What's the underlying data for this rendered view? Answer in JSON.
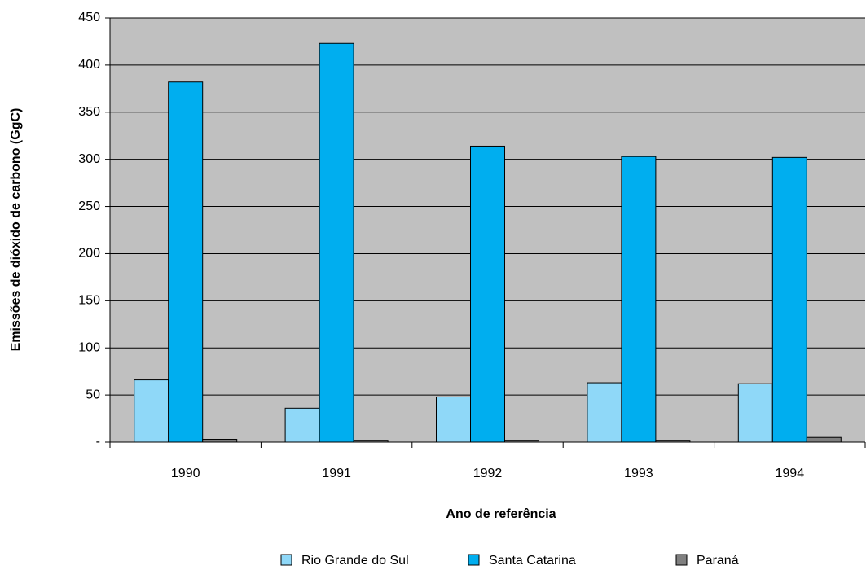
{
  "chart_data": {
    "type": "bar",
    "x_label": "Ano de referência",
    "y_label": "Emissões de dióxido de carbono (GgC)",
    "categories": [
      "1990",
      "1991",
      "1992",
      "1993",
      "1994"
    ],
    "series": [
      {
        "name": "Rio Grande do Sul",
        "color": "#8fd8f8",
        "values": [
          66,
          36,
          48,
          63,
          62
        ]
      },
      {
        "name": "Santa Catarina",
        "color": "#00aeef",
        "values": [
          382,
          423,
          314,
          303,
          302
        ]
      },
      {
        "name": "Paraná",
        "color": "#808080",
        "values": [
          3,
          2,
          2,
          2,
          5
        ]
      }
    ],
    "ylim": [
      0,
      450
    ],
    "yticks": [
      {
        "value": 0,
        "label": "-"
      },
      50,
      100,
      150,
      200,
      250,
      300,
      350,
      400,
      450
    ],
    "grid": true,
    "legend": "bottom",
    "plot_background": "#c0c0c0"
  }
}
